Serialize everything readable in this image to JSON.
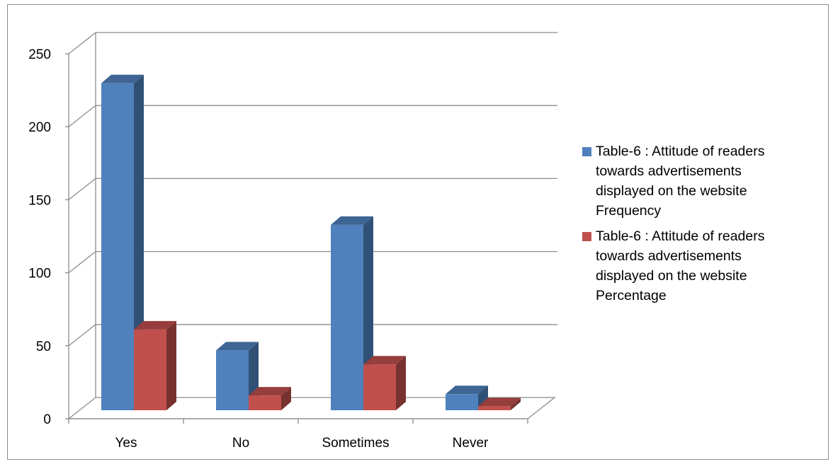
{
  "chart_data": {
    "type": "bar",
    "style": "3d-clustered-column",
    "categories": [
      "Yes",
      "No",
      "Sometimes",
      "Never"
    ],
    "series": [
      {
        "name": "Table-6 : Attitude of readers towards advertisements displayed on the website Frequency",
        "values": [
          224,
          41,
          127,
          11
        ],
        "color": "#4f81bd"
      },
      {
        "name": "Table-6 : Attitude of readers towards advertisements displayed on the website Percentage",
        "values": [
          55.3,
          10.1,
          31.4,
          2.7
        ],
        "color": "#c0504d"
      }
    ],
    "y_ticks": [
      "0",
      "50",
      "100",
      "150",
      "200",
      "250"
    ],
    "ylim": [
      0,
      250
    ],
    "title": "",
    "xlabel": "",
    "ylabel": "",
    "grid": true,
    "legend_position": "right"
  },
  "legend": {
    "items": [
      {
        "text": "Table-6 : Attitude of readers\ntowards advertisements\ndisplayed on the website\nFrequency",
        "color": "#4f81bd"
      },
      {
        "text": "Table-6 : Attitude of readers\ntowards advertisements\ndisplayed on the website\nPercentage",
        "color": "#c0504d"
      }
    ]
  }
}
